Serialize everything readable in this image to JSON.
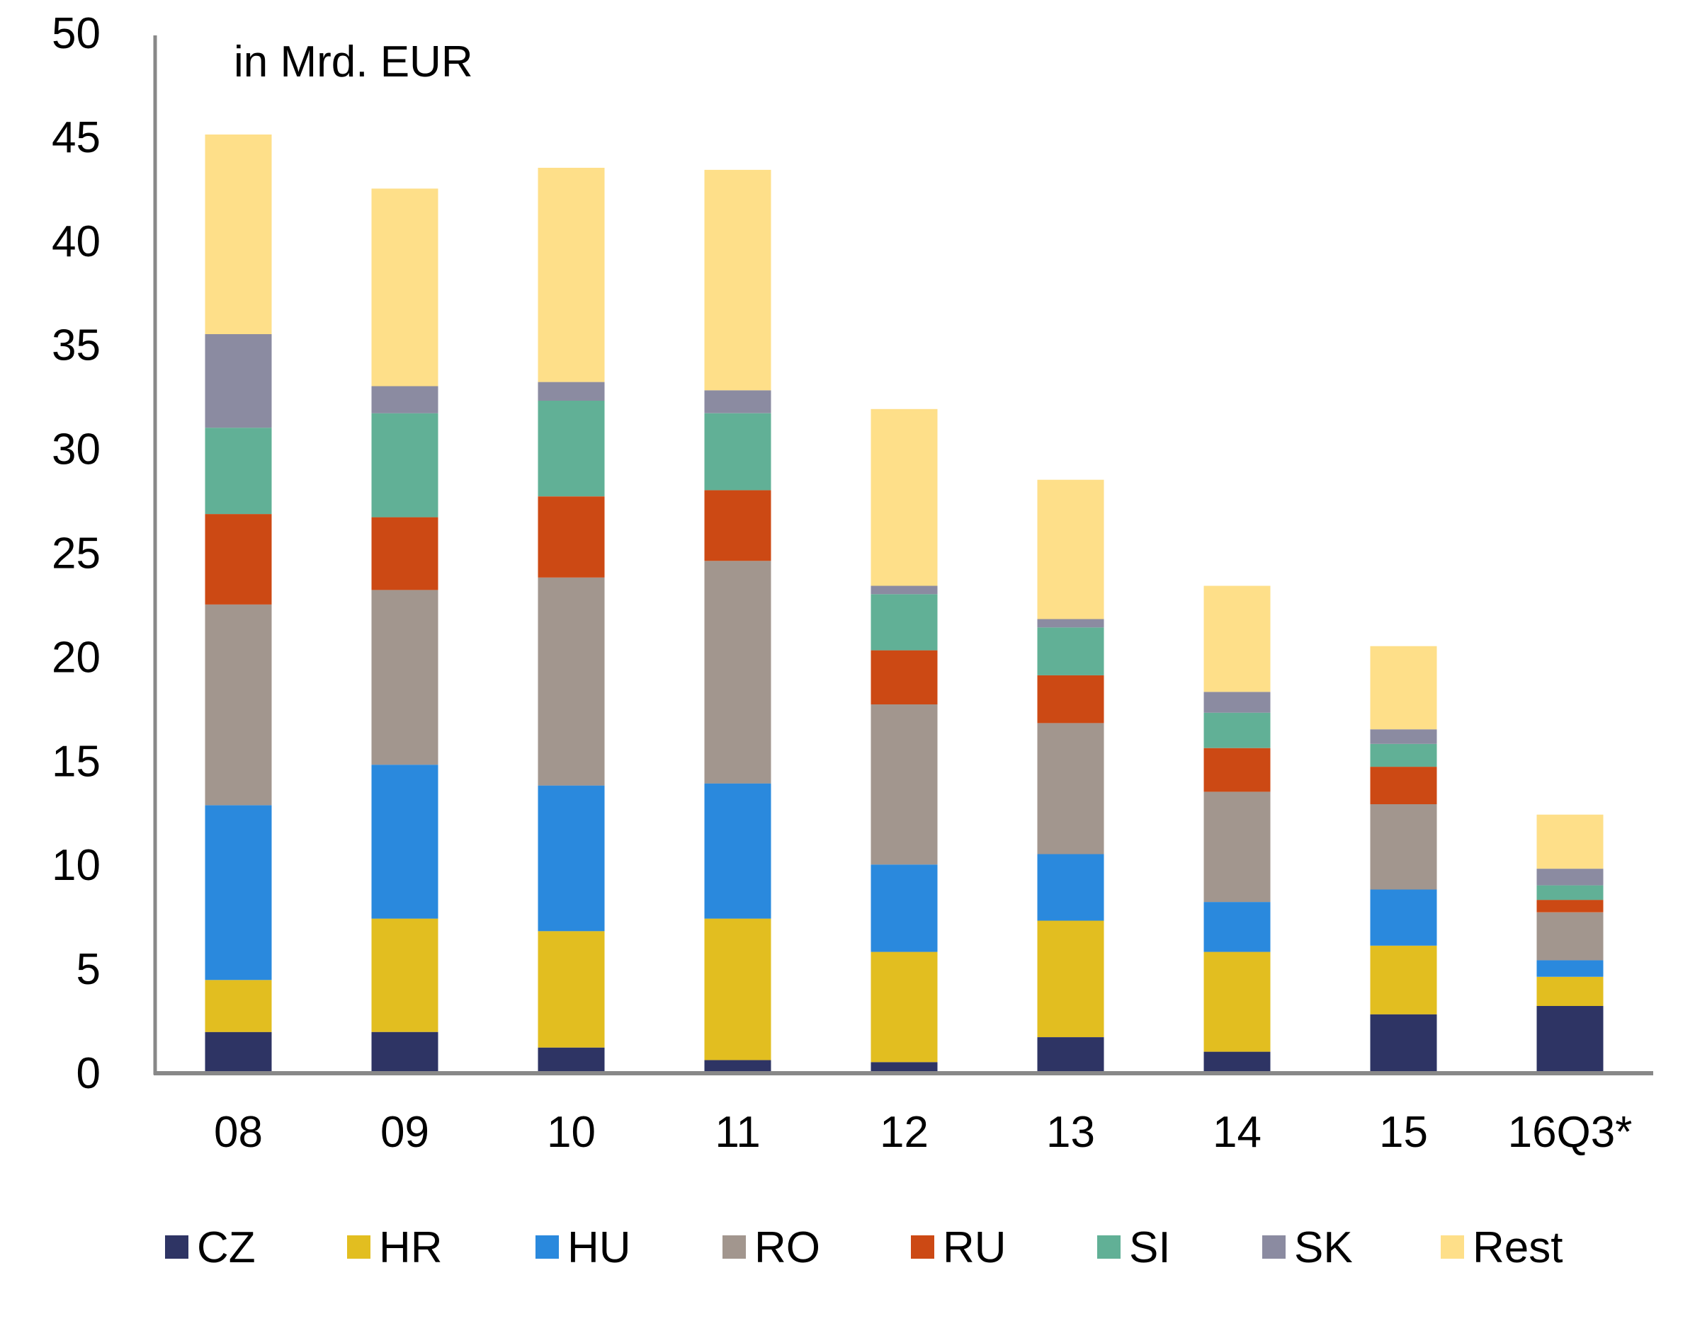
{
  "chart_data": {
    "type": "bar",
    "stacked": true,
    "title": "",
    "unit_label": "in Mrd. EUR",
    "xlabel": "",
    "ylabel": "",
    "ylim": [
      0,
      50
    ],
    "yticks": [
      0,
      5,
      10,
      15,
      20,
      25,
      30,
      35,
      40,
      45,
      50
    ],
    "grid": false,
    "legend_position": "bottom",
    "categories": [
      "08",
      "09",
      "10",
      "11",
      "12",
      "13",
      "14",
      "15",
      "16Q3*"
    ],
    "series": [
      {
        "name": "CZ",
        "color": "#2E3464",
        "values": [
          1.95,
          1.95,
          1.2,
          0.6,
          0.5,
          1.7,
          1.0,
          2.8,
          3.2
        ]
      },
      {
        "name": "HR",
        "color": "#E2BE20",
        "values": [
          2.5,
          5.45,
          5.6,
          6.8,
          5.3,
          5.6,
          4.8,
          3.3,
          1.4
        ]
      },
      {
        "name": "HU",
        "color": "#2A89DD",
        "values": [
          8.4,
          7.4,
          7.0,
          6.5,
          4.2,
          3.2,
          2.4,
          2.7,
          0.8
        ]
      },
      {
        "name": "RO",
        "color": "#A2968E",
        "values": [
          9.65,
          8.4,
          10.0,
          10.7,
          7.7,
          6.3,
          5.3,
          4.1,
          2.3
        ]
      },
      {
        "name": "RU",
        "color": "#CC4914",
        "values": [
          4.35,
          3.5,
          3.9,
          3.4,
          2.6,
          2.3,
          2.1,
          1.8,
          0.6
        ]
      },
      {
        "name": "SI",
        "color": "#61B096",
        "values": [
          4.15,
          5.0,
          4.6,
          3.7,
          2.7,
          2.3,
          1.7,
          1.1,
          0.7
        ]
      },
      {
        "name": "SK",
        "color": "#8B8BA1",
        "values": [
          4.5,
          1.3,
          0.9,
          1.1,
          0.4,
          0.4,
          1.0,
          0.7,
          0.8
        ]
      },
      {
        "name": "Rest",
        "color": "#FEDF89",
        "values": [
          9.6,
          9.5,
          10.3,
          10.6,
          8.5,
          6.7,
          5.1,
          4.0,
          2.6
        ]
      }
    ],
    "axis_color": "#888888"
  }
}
